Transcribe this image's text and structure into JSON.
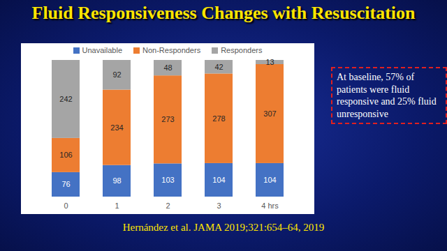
{
  "chart_data": {
    "type": "bar",
    "title": "Fluid Responsiveness Changes with Resuscitation",
    "categories": [
      "0",
      "1",
      "2",
      "3",
      "4 hrs"
    ],
    "series": [
      {
        "name": "Unavailable",
        "color": "#4472c4",
        "values": [
          76,
          98,
          103,
          104,
          104
        ]
      },
      {
        "name": "Non-Responders",
        "color": "#ed7d31",
        "values": [
          106,
          234,
          273,
          278,
          307
        ]
      },
      {
        "name": "Responders",
        "color": "#a5a5a5",
        "values": [
          242,
          92,
          48,
          42,
          13
        ]
      }
    ],
    "ylim": [
      0,
      424
    ],
    "stacked": true,
    "data_labels": true,
    "legend": "top",
    "tick_labels": "x",
    "annotations": [
      "At baseline, 57% of patients were fluid responsive and 25% fluid unresponsive"
    ],
    "source": "Hernández et al. JAMA 2019;321:654–64, 2019"
  }
}
